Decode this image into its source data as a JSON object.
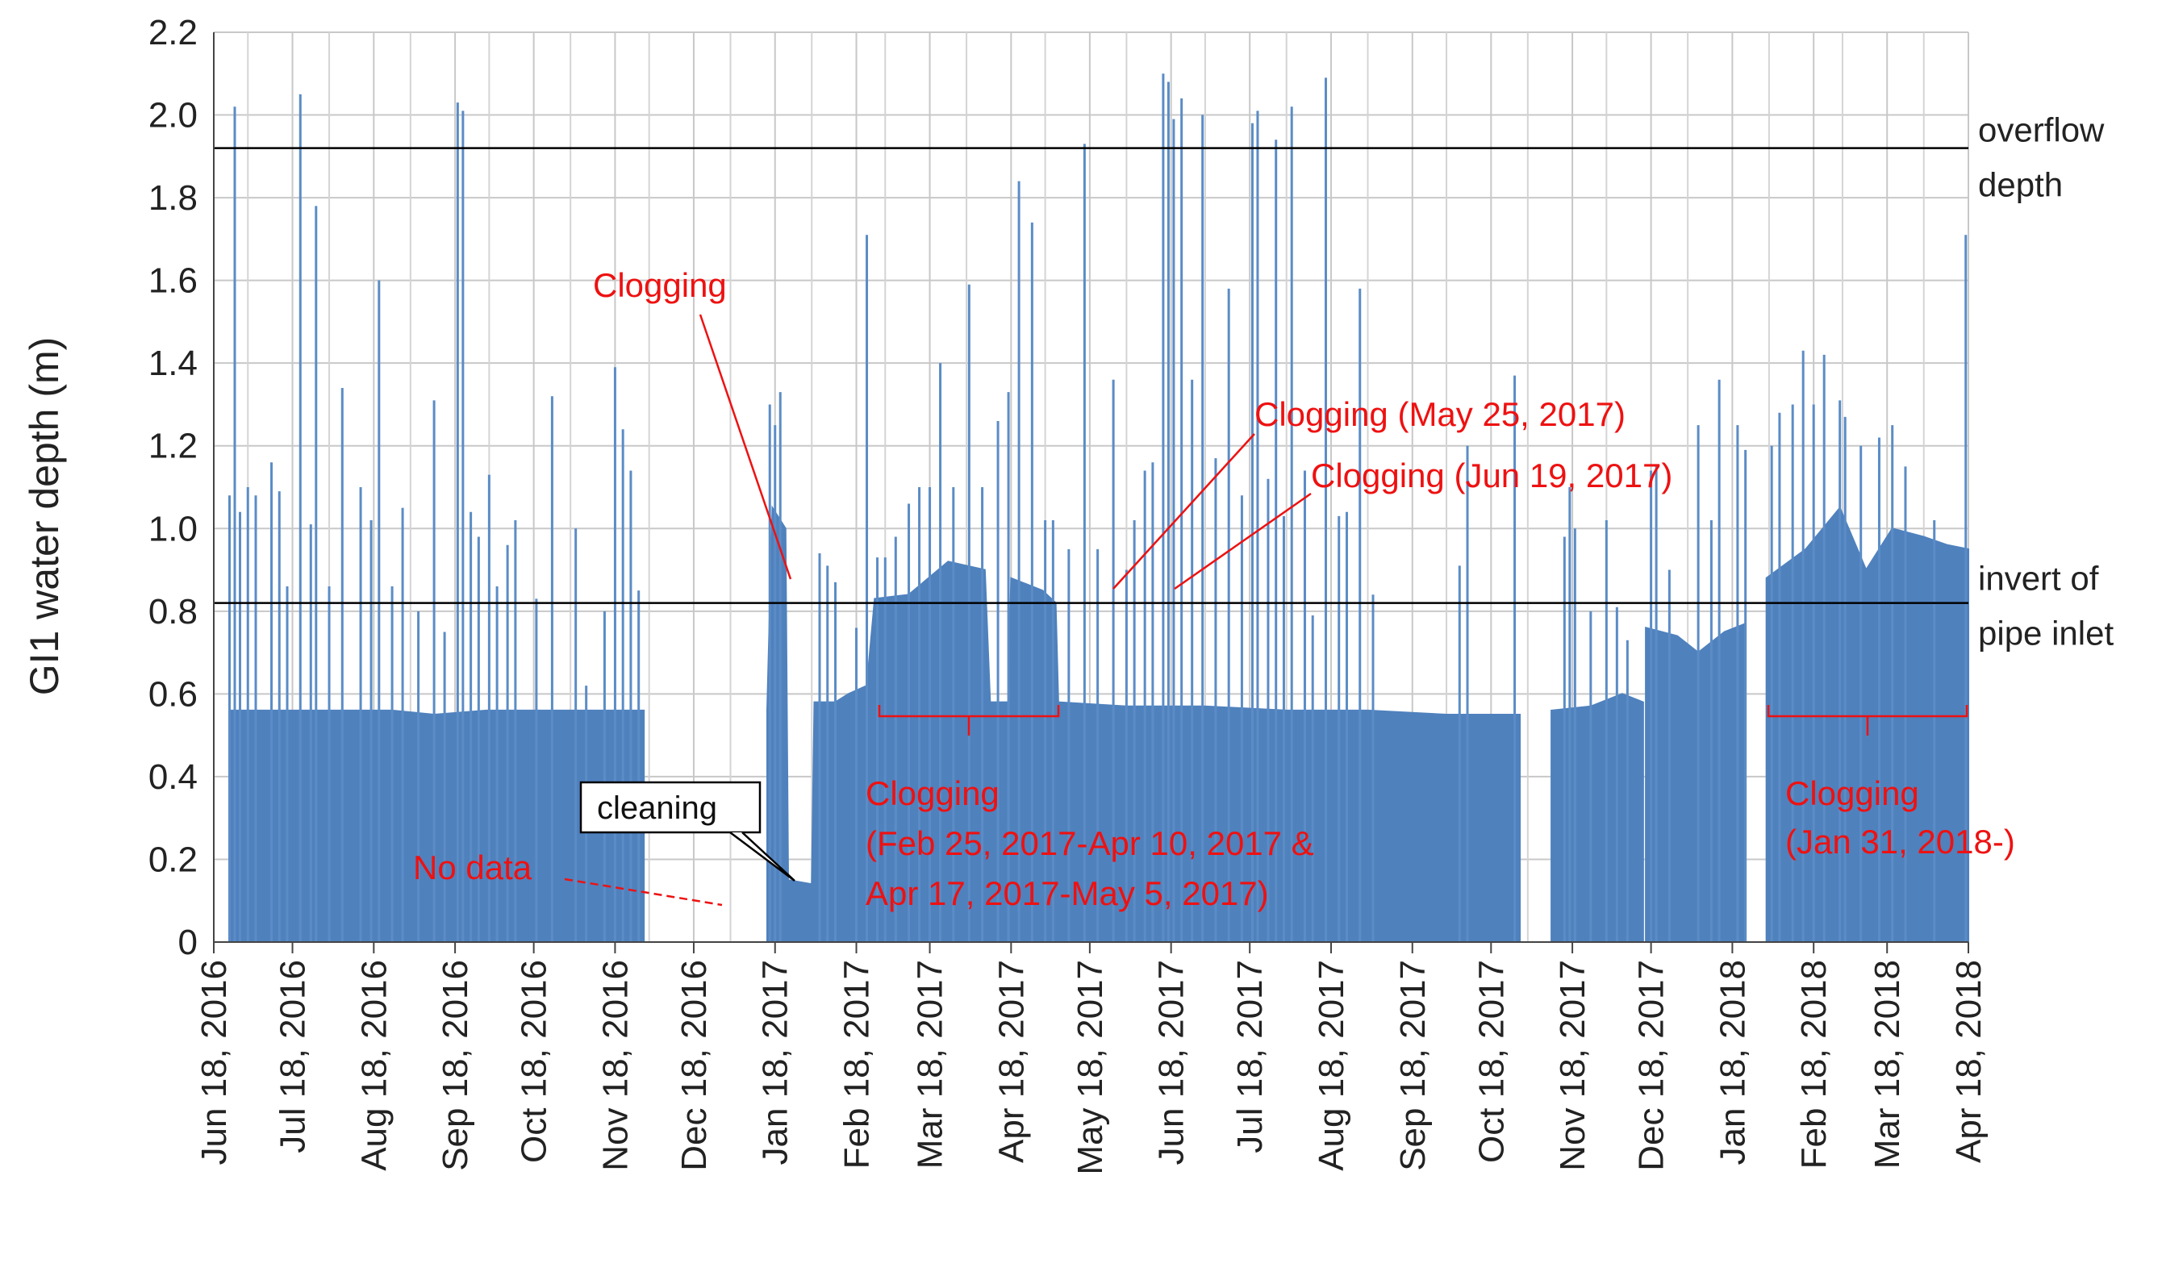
{
  "chart_data": {
    "type": "area",
    "ylabel": "GI1 water depth (m)",
    "xlabel": "",
    "ylim": [
      0,
      2.2
    ],
    "yticks": [
      "0",
      "0.2",
      "0.4",
      "0.6",
      "0.8",
      "1.0",
      "1.2",
      "1.4",
      "1.6",
      "1.8",
      "2.0",
      "2.2"
    ],
    "xlim": [
      "2016-06-18",
      "2018-04-18"
    ],
    "xticks": [
      {
        "date": "2016-06-18",
        "label": "Jun 18, 2016"
      },
      {
        "date": "2016-07-18",
        "label": "Jul 18, 2016"
      },
      {
        "date": "2016-08-18",
        "label": "Aug 18, 2016"
      },
      {
        "date": "2016-09-18",
        "label": "Sep 18, 2016"
      },
      {
        "date": "2016-10-18",
        "label": "Oct 18, 2016"
      },
      {
        "date": "2016-11-18",
        "label": "Nov 18, 2016"
      },
      {
        "date": "2016-12-18",
        "label": "Dec 18, 2016"
      },
      {
        "date": "2017-01-18",
        "label": "Jan 18, 2017"
      },
      {
        "date": "2017-02-18",
        "label": "Feb 18, 2017"
      },
      {
        "date": "2017-03-18",
        "label": "Mar 18, 2017"
      },
      {
        "date": "2017-04-18",
        "label": "Apr 18, 2017"
      },
      {
        "date": "2017-05-18",
        "label": "May 18, 2017"
      },
      {
        "date": "2017-06-18",
        "label": "Jun 18, 2017"
      },
      {
        "date": "2017-07-18",
        "label": "Jul 18, 2017"
      },
      {
        "date": "2017-08-18",
        "label": "Aug 18, 2017"
      },
      {
        "date": "2017-09-18",
        "label": "Sep 18, 2017"
      },
      {
        "date": "2017-10-18",
        "label": "Oct 18, 2017"
      },
      {
        "date": "2017-11-18",
        "label": "Nov 18, 2017"
      },
      {
        "date": "2017-12-18",
        "label": "Dec 18, 2017"
      },
      {
        "date": "2018-01-18",
        "label": "Jan 18, 2018"
      },
      {
        "date": "2018-02-18",
        "label": "Feb 18, 2018"
      },
      {
        "date": "2018-03-18",
        "label": "Mar 18, 2018"
      },
      {
        "date": "2018-04-18",
        "label": "Apr 18, 2018"
      }
    ],
    "grid": true,
    "fill_color": "#4f81bd",
    "series": [
      {
        "values": [
          {
            "segment": [
              [
                "2016-06-24",
                0.56
              ],
              [
                "2016-07-15",
                0.56
              ],
              [
                "2016-08-05",
                0.56
              ],
              [
                "2016-08-25",
                0.56
              ],
              [
                "2016-09-10",
                0.55
              ],
              [
                "2016-09-30",
                0.56
              ],
              [
                "2016-10-20",
                0.56
              ],
              [
                "2016-11-10",
                0.56
              ],
              [
                "2016-11-24",
                0.56
              ],
              [
                "2016-11-29",
                0.56
              ]
            ]
          },
          {
            "segment": [
              [
                "2017-01-15",
                0.56
              ],
              [
                "2017-01-17",
                1.05
              ],
              [
                "2017-01-22",
                1.0
              ],
              [
                "2017-01-23",
                0.15
              ],
              [
                "2017-02-01",
                0.14
              ],
              [
                "2017-02-02",
                0.58
              ],
              [
                "2017-02-10",
                0.58
              ],
              [
                "2017-02-15",
                0.6
              ],
              [
                "2017-02-22",
                0.62
              ],
              [
                "2017-02-25",
                0.83
              ],
              [
                "2017-03-10",
                0.84
              ],
              [
                "2017-03-25",
                0.92
              ],
              [
                "2017-04-08",
                0.9
              ],
              [
                "2017-04-10",
                0.58
              ],
              [
                "2017-04-17",
                0.58
              ],
              [
                "2017-04-18",
                0.88
              ],
              [
                "2017-04-30",
                0.85
              ],
              [
                "2017-05-05",
                0.82
              ],
              [
                "2017-05-06",
                0.58
              ],
              [
                "2017-06-01",
                0.57
              ],
              [
                "2017-07-01",
                0.57
              ],
              [
                "2017-08-01",
                0.56
              ],
              [
                "2017-09-01",
                0.56
              ],
              [
                "2017-10-01",
                0.55
              ],
              [
                "2017-10-29",
                0.55
              ]
            ]
          },
          {
            "segment": [
              [
                "2017-11-10",
                0.56
              ],
              [
                "2017-11-25",
                0.57
              ],
              [
                "2017-12-07",
                0.6
              ],
              [
                "2017-12-15",
                0.58
              ]
            ]
          },
          {
            "segment": [
              [
                "2017-12-16",
                0.76
              ],
              [
                "2017-12-28",
                0.74
              ],
              [
                "2018-01-05",
                0.7
              ],
              [
                "2018-01-15",
                0.75
              ],
              [
                "2018-01-23",
                0.77
              ]
            ]
          },
          {
            "segment": [
              [
                "2018-01-31",
                0.88
              ],
              [
                "2018-02-15",
                0.95
              ],
              [
                "2018-02-28",
                1.05
              ],
              [
                "2018-03-10",
                0.9
              ],
              [
                "2018-03-20",
                1.0
              ],
              [
                "2018-04-01",
                0.98
              ],
              [
                "2018-04-10",
                0.96
              ],
              [
                "2018-04-18",
                0.95
              ]
            ]
          }
        ],
        "spikes": [
          [
            "2016-06-24",
            1.08
          ],
          [
            "2016-06-26",
            2.02
          ],
          [
            "2016-06-28",
            1.04
          ],
          [
            "2016-07-01",
            1.1
          ],
          [
            "2016-07-04",
            1.08
          ],
          [
            "2016-07-10",
            1.16
          ],
          [
            "2016-07-13",
            1.09
          ],
          [
            "2016-07-16",
            0.86
          ],
          [
            "2016-07-21",
            2.05
          ],
          [
            "2016-07-25",
            1.01
          ],
          [
            "2016-07-27",
            1.78
          ],
          [
            "2016-08-01",
            0.86
          ],
          [
            "2016-08-06",
            1.34
          ],
          [
            "2016-08-13",
            1.1
          ],
          [
            "2016-08-17",
            1.02
          ],
          [
            "2016-08-20",
            1.6
          ],
          [
            "2016-08-25",
            0.86
          ],
          [
            "2016-08-29",
            1.05
          ],
          [
            "2016-09-04",
            0.8
          ],
          [
            "2016-09-10",
            1.31
          ],
          [
            "2016-09-14",
            0.75
          ],
          [
            "2016-09-19",
            2.03
          ],
          [
            "2016-09-21",
            2.01
          ],
          [
            "2016-09-24",
            1.04
          ],
          [
            "2016-09-27",
            0.98
          ],
          [
            "2016-10-01",
            1.13
          ],
          [
            "2016-10-04",
            0.86
          ],
          [
            "2016-10-08",
            0.96
          ],
          [
            "2016-10-11",
            1.02
          ],
          [
            "2016-10-19",
            0.83
          ],
          [
            "2016-10-25",
            1.32
          ],
          [
            "2016-11-03",
            1.0
          ],
          [
            "2016-11-07",
            0.62
          ],
          [
            "2016-11-14",
            0.8
          ],
          [
            "2016-11-18",
            1.39
          ],
          [
            "2016-11-21",
            1.24
          ],
          [
            "2016-11-24",
            1.14
          ],
          [
            "2016-11-27",
            0.85
          ],
          [
            "2017-01-16",
            1.3
          ],
          [
            "2017-01-18",
            1.25
          ],
          [
            "2017-01-20",
            1.33
          ],
          [
            "2017-02-04",
            0.94
          ],
          [
            "2017-02-07",
            0.91
          ],
          [
            "2017-02-10",
            0.87
          ],
          [
            "2017-02-18",
            0.76
          ],
          [
            "2017-02-22",
            1.71
          ],
          [
            "2017-02-26",
            0.93
          ],
          [
            "2017-03-01",
            0.93
          ],
          [
            "2017-03-05",
            0.98
          ],
          [
            "2017-03-10",
            1.06
          ],
          [
            "2017-03-14",
            1.1
          ],
          [
            "2017-03-18",
            1.1
          ],
          [
            "2017-03-22",
            1.4
          ],
          [
            "2017-03-27",
            1.1
          ],
          [
            "2017-04-02",
            1.59
          ],
          [
            "2017-04-07",
            1.1
          ],
          [
            "2017-04-13",
            1.26
          ],
          [
            "2017-04-17",
            1.33
          ],
          [
            "2017-04-21",
            1.84
          ],
          [
            "2017-04-26",
            1.74
          ],
          [
            "2017-05-01",
            1.02
          ],
          [
            "2017-05-04",
            1.02
          ],
          [
            "2017-05-10",
            0.95
          ],
          [
            "2017-05-16",
            1.93
          ],
          [
            "2017-05-21",
            0.95
          ],
          [
            "2017-05-27",
            1.36
          ],
          [
            "2017-06-01",
            0.9
          ],
          [
            "2017-06-04",
            1.02
          ],
          [
            "2017-06-08",
            1.14
          ],
          [
            "2017-06-11",
            1.16
          ],
          [
            "2017-06-15",
            2.1
          ],
          [
            "2017-06-17",
            2.08
          ],
          [
            "2017-06-19",
            1.99
          ],
          [
            "2017-06-22",
            2.04
          ],
          [
            "2017-06-26",
            1.36
          ],
          [
            "2017-06-30",
            2.0
          ],
          [
            "2017-07-05",
            1.17
          ],
          [
            "2017-07-10",
            1.58
          ],
          [
            "2017-07-15",
            1.08
          ],
          [
            "2017-07-19",
            1.98
          ],
          [
            "2017-07-21",
            2.01
          ],
          [
            "2017-07-25",
            1.12
          ],
          [
            "2017-07-28",
            1.94
          ],
          [
            "2017-07-31",
            1.03
          ],
          [
            "2017-08-03",
            2.02
          ],
          [
            "2017-08-08",
            1.14
          ],
          [
            "2017-08-11",
            0.79
          ],
          [
            "2017-08-16",
            2.09
          ],
          [
            "2017-08-21",
            1.03
          ],
          [
            "2017-08-24",
            1.04
          ],
          [
            "2017-08-29",
            1.58
          ],
          [
            "2017-09-03",
            0.84
          ],
          [
            "2017-10-06",
            0.91
          ],
          [
            "2017-10-09",
            1.2
          ],
          [
            "2017-10-27",
            1.37
          ],
          [
            "2017-11-15",
            0.98
          ],
          [
            "2017-11-17",
            1.1
          ],
          [
            "2017-11-19",
            1.0
          ],
          [
            "2017-11-25",
            0.8
          ],
          [
            "2017-12-01",
            1.02
          ],
          [
            "2017-12-05",
            0.81
          ],
          [
            "2017-12-09",
            0.73
          ],
          [
            "2017-12-18",
            1.14
          ],
          [
            "2017-12-20",
            1.15
          ],
          [
            "2017-12-25",
            0.9
          ],
          [
            "2018-01-05",
            1.25
          ],
          [
            "2018-01-10",
            1.02
          ],
          [
            "2018-01-13",
            1.36
          ],
          [
            "2018-01-20",
            1.25
          ],
          [
            "2018-01-23",
            1.19
          ],
          [
            "2018-02-02",
            1.2
          ],
          [
            "2018-02-05",
            1.28
          ],
          [
            "2018-02-10",
            1.3
          ],
          [
            "2018-02-14",
            1.43
          ],
          [
            "2018-02-18",
            1.3
          ],
          [
            "2018-02-22",
            1.42
          ],
          [
            "2018-02-28",
            1.31
          ],
          [
            "2018-03-02",
            1.27
          ],
          [
            "2018-03-08",
            1.2
          ],
          [
            "2018-03-15",
            1.22
          ],
          [
            "2018-03-20",
            1.25
          ],
          [
            "2018-03-25",
            1.15
          ],
          [
            "2018-04-05",
            1.02
          ],
          [
            "2018-04-17",
            1.71
          ]
        ]
      }
    ],
    "reference_lines": [
      {
        "y": 1.92,
        "label_lines": [
          "overflow",
          "depth"
        ]
      },
      {
        "y": 0.82,
        "label_lines": [
          "invert of",
          "pipe inlet"
        ]
      }
    ],
    "annotations": [
      {
        "text_lines": [
          "Clogging"
        ]
      },
      {
        "text_lines": [
          "Clogging (May 25, 2017)"
        ]
      },
      {
        "text_lines": [
          "Clogging (Jun 19, 2017)"
        ]
      },
      {
        "text_lines": [
          "Clogging",
          "(Feb 25, 2017-Apr 10, 2017 &",
          "Apr 17, 2017-May 5, 2017)"
        ]
      },
      {
        "text_lines": [
          "Clogging",
          "(Jan 31, 2018-)"
        ]
      },
      {
        "text_lines": [
          "No data"
        ]
      },
      {
        "text_lines": [
          "cleaning"
        ]
      }
    ]
  }
}
